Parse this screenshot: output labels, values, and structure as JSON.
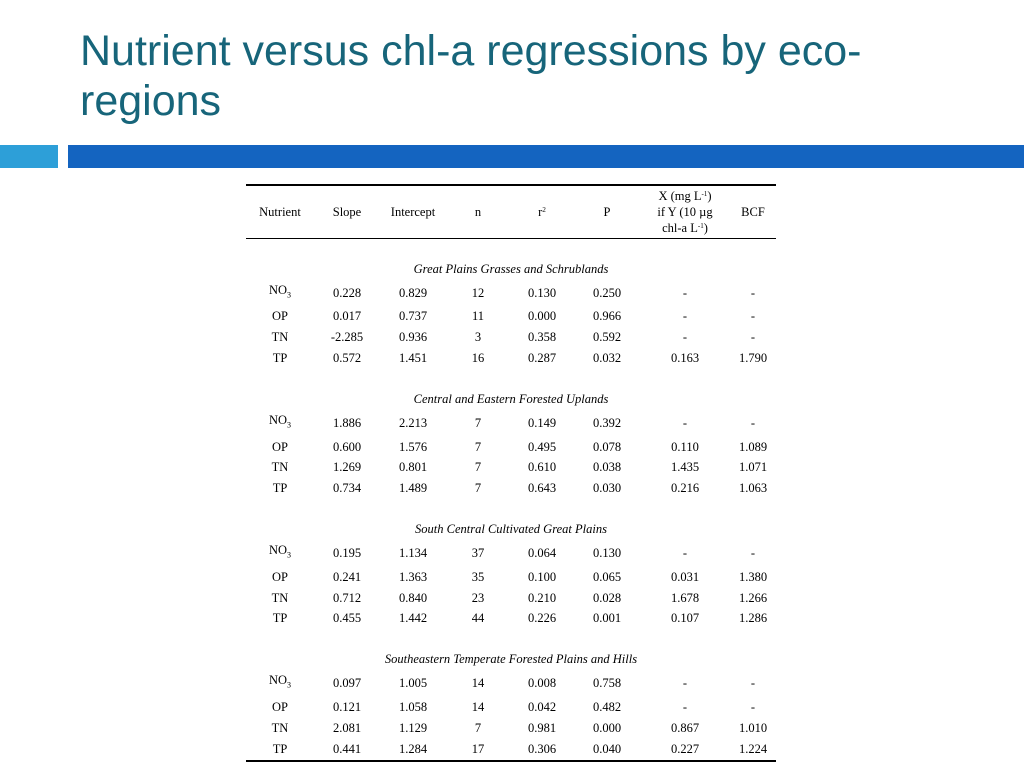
{
  "slide": {
    "title": "Nutrient versus chl-a regressions by eco-regions"
  },
  "colors": {
    "title": "#17657a",
    "accent_light": "#2d9fd8",
    "accent_dark": "#1464c0"
  },
  "table": {
    "headers": {
      "nutrient": "Nutrient",
      "slope": "Slope",
      "intercept": "Intercept",
      "n": "n",
      "r2_base": "r",
      "r2_sup": "2",
      "p": "P",
      "x_line1_a": "X (mg L",
      "x_line1_sup": "-1",
      "x_line1_b": ")",
      "x_line2": "if Y (10 µg",
      "x_line3_a": "chl-a L",
      "x_line3_sup": "-1",
      "x_line3_b": ")",
      "bcf": "BCF"
    },
    "groups": [
      {
        "name": "Great Plains Grasses and Schrublands",
        "rows": [
          {
            "nutrient": "NO",
            "sub": "3",
            "slope": "0.228",
            "intercept": "0.829",
            "n": "12",
            "r2": "0.130",
            "p": "0.250",
            "x": "-",
            "bcf": "-"
          },
          {
            "nutrient": "OP",
            "sub": "",
            "slope": "0.017",
            "intercept": "0.737",
            "n": "11",
            "r2": "0.000",
            "p": "0.966",
            "x": "-",
            "bcf": "-"
          },
          {
            "nutrient": "TN",
            "sub": "",
            "slope": "-2.285",
            "intercept": "0.936",
            "n": "3",
            "r2": "0.358",
            "p": "0.592",
            "x": "-",
            "bcf": "-"
          },
          {
            "nutrient": "TP",
            "sub": "",
            "slope": "0.572",
            "intercept": "1.451",
            "n": "16",
            "r2": "0.287",
            "p": "0.032",
            "x": "0.163",
            "bcf": "1.790"
          }
        ]
      },
      {
        "name": "Central and Eastern Forested Uplands",
        "rows": [
          {
            "nutrient": "NO",
            "sub": "3",
            "slope": "1.886",
            "intercept": "2.213",
            "n": "7",
            "r2": "0.149",
            "p": "0.392",
            "x": "-",
            "bcf": "-"
          },
          {
            "nutrient": "OP",
            "sub": "",
            "slope": "0.600",
            "intercept": "1.576",
            "n": "7",
            "r2": "0.495",
            "p": "0.078",
            "x": "0.110",
            "bcf": "1.089"
          },
          {
            "nutrient": "TN",
            "sub": "",
            "slope": "1.269",
            "intercept": "0.801",
            "n": "7",
            "r2": "0.610",
            "p": "0.038",
            "x": "1.435",
            "bcf": "1.071"
          },
          {
            "nutrient": "TP",
            "sub": "",
            "slope": "0.734",
            "intercept": "1.489",
            "n": "7",
            "r2": "0.643",
            "p": "0.030",
            "x": "0.216",
            "bcf": "1.063"
          }
        ]
      },
      {
        "name": "South Central Cultivated Great Plains",
        "rows": [
          {
            "nutrient": "NO",
            "sub": "3",
            "slope": "0.195",
            "intercept": "1.134",
            "n": "37",
            "r2": "0.064",
            "p": "0.130",
            "x": "-",
            "bcf": "-"
          },
          {
            "nutrient": "OP",
            "sub": "",
            "slope": "0.241",
            "intercept": "1.363",
            "n": "35",
            "r2": "0.100",
            "p": "0.065",
            "x": "0.031",
            "bcf": "1.380"
          },
          {
            "nutrient": "TN",
            "sub": "",
            "slope": "0.712",
            "intercept": "0.840",
            "n": "23",
            "r2": "0.210",
            "p": "0.028",
            "x": "1.678",
            "bcf": "1.266"
          },
          {
            "nutrient": "TP",
            "sub": "",
            "slope": "0.455",
            "intercept": "1.442",
            "n": "44",
            "r2": "0.226",
            "p": "0.001",
            "x": "0.107",
            "bcf": "1.286"
          }
        ]
      },
      {
        "name": "Southeastern Temperate Forested Plains and Hills",
        "rows": [
          {
            "nutrient": "NO",
            "sub": "3",
            "slope": "0.097",
            "intercept": "1.005",
            "n": "14",
            "r2": "0.008",
            "p": "0.758",
            "x": "-",
            "bcf": "-"
          },
          {
            "nutrient": "OP",
            "sub": "",
            "slope": "0.121",
            "intercept": "1.058",
            "n": "14",
            "r2": "0.042",
            "p": "0.482",
            "x": "-",
            "bcf": "-"
          },
          {
            "nutrient": "TN",
            "sub": "",
            "slope": "2.081",
            "intercept": "1.129",
            "n": "7",
            "r2": "0.981",
            "p": "0.000",
            "x": "0.867",
            "bcf": "1.010"
          },
          {
            "nutrient": "TP",
            "sub": "",
            "slope": "0.441",
            "intercept": "1.284",
            "n": "17",
            "r2": "0.306",
            "p": "0.040",
            "x": "0.227",
            "bcf": "1.224"
          }
        ]
      }
    ]
  }
}
